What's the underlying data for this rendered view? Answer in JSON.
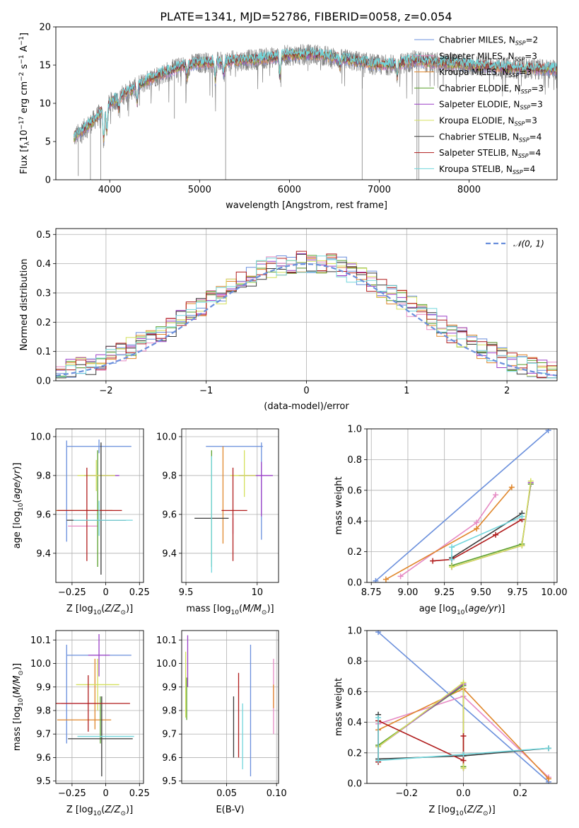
{
  "title": "PLATE=1341, MJD=52786, FIBERID=0058, z=0.054",
  "colors": {
    "Chabrier MILES": "#6a8fdc",
    "Salpeter MILES": "#e68ac4",
    "Kroupa MILES": "#e0862a",
    "Chabrier ELODIE": "#5aa02c",
    "Salpeter ELODIE": "#9b3fc7",
    "Kroupa ELODIE": "#d4e05c",
    "Chabrier STELIB": "#3a3a3a",
    "Salpeter STELIB": "#b01c1c",
    "Kroupa STELIB": "#72d6dc",
    "data": "#808080",
    "gaussian": "#6a8fdc"
  },
  "legend_models": [
    {
      "base": "Chabrier MILES",
      "sub": "SSP",
      "nval": "2"
    },
    {
      "base": "Salpeter MILES",
      "sub": "SSP",
      "nval": "3"
    },
    {
      "base": "Kroupa MILES",
      "sub": "SSP",
      "nval": "3"
    },
    {
      "base": "Chabrier ELODIE",
      "sub": "SSP",
      "nval": "3"
    },
    {
      "base": "Salpeter ELODIE",
      "sub": "SSP",
      "nval": "3"
    },
    {
      "base": "Kroupa ELODIE",
      "sub": "SSP",
      "nval": "3"
    },
    {
      "base": "Chabrier STELIB",
      "sub": "SSP",
      "nval": "4"
    },
    {
      "base": "Salpeter STELIB",
      "sub": "SSP",
      "nval": "4"
    },
    {
      "base": "Kroupa STELIB",
      "sub": "SSP",
      "nval": "4"
    }
  ],
  "gauss_legend": "𝒩(0, 1)",
  "chart_data": [
    {
      "id": "spectrum",
      "type": "line",
      "xlabel": "wavelength [Angstrom, rest frame]",
      "ylabel": "Flux [f_λ10^-17 erg cm^-2 s^-1 A^-1]",
      "xlim": [
        3400,
        8980
      ],
      "ylim": [
        0,
        20
      ],
      "xticks": [
        4000,
        5000,
        6000,
        7000,
        8000
      ],
      "yticks": [
        0,
        5,
        10,
        15,
        20
      ],
      "data_range": [
        3600,
        9000
      ],
      "continuum": {
        "x": [
          3600,
          3800,
          4000,
          4200,
          4500,
          4800,
          5000,
          5300,
          5600,
          6000,
          6300,
          6600,
          6800,
          7000,
          7200,
          7400,
          7600,
          8000,
          8500,
          9000
        ],
        "y": [
          5.5,
          7.5,
          10.0,
          11.5,
          13.5,
          14.8,
          15.3,
          15.5,
          15.7,
          16.3,
          16.4,
          15.8,
          15.4,
          15.0,
          15.1,
          15.6,
          15.3,
          15.0,
          14.6,
          14.4
        ]
      },
      "dips": [
        {
          "x": 3933,
          "depth": 4.0
        },
        {
          "x": 3968,
          "depth": 3.5
        },
        {
          "x": 4101,
          "depth": 1.5
        },
        {
          "x": 4305,
          "depth": 2.0
        },
        {
          "x": 4861,
          "depth": 1.5
        },
        {
          "x": 5175,
          "depth": 2.5
        },
        {
          "x": 5270,
          "depth": 1.5
        },
        {
          "x": 5895,
          "depth": 2.5
        },
        {
          "x": 6563,
          "depth": 1.0
        },
        {
          "x": 7200,
          "depth": 1.5
        }
      ],
      "spikes": [
        {
          "x": 3650,
          "y": 0.5
        },
        {
          "x": 3785,
          "y": 0.0
        },
        {
          "x": 3900,
          "y": 0.0
        },
        {
          "x": 4720,
          "y": 8.0
        },
        {
          "x": 5290,
          "y": 0.0
        },
        {
          "x": 6810,
          "y": 0.0
        },
        {
          "x": 7420,
          "y": 0.0
        },
        {
          "x": 7440,
          "y": 0.0
        }
      ]
    },
    {
      "id": "residuals",
      "type": "step",
      "xlabel": "(data-model)/error",
      "ylabel": "Normed distribution",
      "xlim": [
        -2.5,
        2.5
      ],
      "ylim": [
        0,
        0.52
      ],
      "xticks": [
        -2,
        -1,
        0,
        1,
        2
      ],
      "yticks": [
        0.0,
        0.1,
        0.2,
        0.3,
        0.4,
        0.5
      ],
      "bins": [
        -2.5,
        -2.4,
        -2.3,
        -2.2,
        -2.1,
        -2.0,
        -1.9,
        -1.8,
        -1.7,
        -1.6,
        -1.5,
        -1.4,
        -1.3,
        -1.2,
        -1.1,
        -1.0,
        -0.9,
        -0.8,
        -0.7,
        -0.6,
        -0.5,
        -0.4,
        -0.3,
        -0.2,
        -0.1,
        0.0,
        0.1,
        0.2,
        0.3,
        0.4,
        0.5,
        0.6,
        0.7,
        0.8,
        0.9,
        1.0,
        1.1,
        1.2,
        1.3,
        1.4,
        1.5,
        1.6,
        1.7,
        1.8,
        1.9,
        2.0,
        2.1,
        2.2,
        2.3,
        2.4,
        2.5
      ],
      "gaussian": "normal(0,1)"
    },
    {
      "id": "age_vs_Z",
      "type": "errorbar",
      "xlabel": "Z [log10(Z/Z_sun)]",
      "ylabel": "age  [log10(age/yr)]",
      "xlim": [
        -0.37,
        0.28
      ],
      "ylim": [
        9.25,
        10.04
      ],
      "xticks": [
        -0.25,
        0.0,
        0.25
      ],
      "yticks": [
        9.4,
        9.6,
        9.8,
        10.0
      ],
      "points": [
        {
          "model": "Chabrier MILES",
          "x": -0.05,
          "y": 9.95,
          "xerr": 0.24,
          "yerr": 0.035
        },
        {
          "model": "Chabrier MILES",
          "x": -0.29,
          "y": 9.72,
          "xerr": 0.0,
          "yerr": 0.26
        },
        {
          "model": "Salpeter MILES",
          "x": -0.17,
          "y": 9.54,
          "xerr": 0.11,
          "yerr": 0.0
        },
        {
          "model": "Kroupa MILES",
          "x": -0.16,
          "y": 9.62,
          "xerr": 0.21,
          "yerr": 0.0
        },
        {
          "model": "Chabrier ELODIE",
          "x": -0.06,
          "y": 9.63,
          "xerr": 0.0,
          "yerr": 0.3
        },
        {
          "model": "Salpeter ELODIE",
          "x": -0.03,
          "y": 9.8,
          "xerr": 0.13,
          "yerr": 0.0
        },
        {
          "model": "Kroupa ELODIE",
          "x": -0.07,
          "y": 9.8,
          "xerr": 0.14,
          "yerr": 0.08
        },
        {
          "model": "Chabrier STELIB",
          "x": -0.07,
          "y": 9.57,
          "xerr": 0.22,
          "yerr": 0.0
        },
        {
          "model": "Chabrier STELIB",
          "x": -0.035,
          "y": 9.63,
          "xerr": 0.0,
          "yerr": 0.34
        },
        {
          "model": "Salpeter STELIB",
          "x": -0.12,
          "y": 9.62,
          "xerr": 0.24,
          "yerr": 0.0
        },
        {
          "model": "Salpeter STELIB",
          "x": -0.14,
          "y": 9.6,
          "xerr": 0.0,
          "yerr": 0.24
        },
        {
          "model": "Kroupa STELIB",
          "x": -0.02,
          "y": 9.57,
          "xerr": 0.22,
          "yerr": 0.0
        },
        {
          "model": "Kroupa STELIB",
          "x": -0.05,
          "y": 9.58,
          "xerr": 0.0,
          "yerr": 0.09
        }
      ]
    },
    {
      "id": "age_vs_mass",
      "type": "errorbar",
      "xlabel": "mass [log10(M/M_sun)]",
      "ylabel": "",
      "xlim": [
        9.47,
        10.15
      ],
      "ylim": [
        9.25,
        10.04
      ],
      "xticks": [
        9.5,
        10.0
      ],
      "yticks": [
        9.4,
        9.6,
        9.8,
        10.0
      ],
      "points": [
        {
          "model": "Chabrier MILES",
          "x": 9.84,
          "y": 9.95,
          "xerr": 0.2,
          "yerr": 0.0
        },
        {
          "model": "Chabrier MILES",
          "x": 10.03,
          "y": 9.72,
          "xerr": 0.0,
          "yerr": 0.25
        },
        {
          "model": "Salpeter MILES",
          "x": 9.83,
          "y": 9.54,
          "xerr": 0.0,
          "yerr": 0.04
        },
        {
          "model": "Kroupa MILES",
          "x": 9.76,
          "y": 9.7,
          "xerr": 0.0,
          "yerr": 0.25
        },
        {
          "model": "Chabrier ELODIE",
          "x": 9.68,
          "y": 9.63,
          "xerr": 0.0,
          "yerr": 0.3
        },
        {
          "model": "Salpeter ELODIE",
          "x": 10.03,
          "y": 9.73,
          "xerr": 0.0,
          "yerr": 0.14
        },
        {
          "model": "Salpeter ELODIE",
          "x": 9.99,
          "y": 9.8,
          "xerr": 0.12,
          "yerr": 0.0
        },
        {
          "model": "Kroupa ELODIE",
          "x": 9.91,
          "y": 9.81,
          "xerr": 0.0,
          "yerr": 0.12
        },
        {
          "model": "Kroupa ELODIE",
          "x": 9.9,
          "y": 9.8,
          "xerr": 0.09,
          "yerr": 0.0
        },
        {
          "model": "Chabrier STELIB",
          "x": 9.68,
          "y": 9.58,
          "xerr": 0.12,
          "yerr": 0.0
        },
        {
          "model": "Salpeter STELIB",
          "x": 9.84,
          "y": 9.62,
          "xerr": 0.09,
          "yerr": 0.0
        },
        {
          "model": "Salpeter STELIB",
          "x": 9.83,
          "y": 9.6,
          "xerr": 0.0,
          "yerr": 0.24
        },
        {
          "model": "Kroupa STELIB",
          "x": 9.68,
          "y": 9.6,
          "xerr": 0.0,
          "yerr": 0.3
        }
      ]
    },
    {
      "id": "weight_vs_age",
      "type": "line",
      "xlabel": "age  [log10(age/yr)]",
      "ylabel": "mass weight",
      "xlim": [
        8.72,
        10.02
      ],
      "ylim": [
        0,
        1.0
      ],
      "xticks": [
        8.75,
        9.0,
        9.25,
        9.5,
        9.75,
        10.0
      ],
      "xtick_labels": [
        "8.75",
        "9.00",
        "9.25",
        "9.50",
        "9.75",
        "10.00"
      ],
      "yticks": [
        0.0,
        0.2,
        0.4,
        0.6,
        0.8,
        1.0
      ],
      "series": [
        {
          "model": "Chabrier MILES",
          "x": [
            8.78,
            9.96
          ],
          "y": [
            0.01,
            0.99
          ]
        },
        {
          "model": "Salpeter MILES",
          "x": [
            8.95,
            9.47,
            9.6
          ],
          "y": [
            0.04,
            0.39,
            0.57
          ]
        },
        {
          "model": "Kroupa MILES",
          "x": [
            8.85,
            9.47,
            9.71
          ],
          "y": [
            0.02,
            0.35,
            0.62
          ]
        },
        {
          "model": "Chabrier ELODIE",
          "x": [
            9.3,
            9.78,
            9.84
          ],
          "y": [
            0.11,
            0.25,
            0.64
          ]
        },
        {
          "model": "Salpeter ELODIE",
          "x": [
            9.3,
            9.78,
            9.84
          ],
          "y": [
            0.1,
            0.24,
            0.65
          ]
        },
        {
          "model": "Kroupa ELODIE",
          "x": [
            9.3,
            9.78,
            9.84
          ],
          "y": [
            0.1,
            0.24,
            0.66
          ]
        },
        {
          "model": "Chabrier STELIB",
          "x": [
            9.3,
            9.78
          ],
          "y": [
            0.16,
            0.45
          ]
        },
        {
          "model": "Salpeter STELIB",
          "x": [
            9.17,
            9.3,
            9.6,
            9.78
          ],
          "y": [
            0.14,
            0.15,
            0.31,
            0.41
          ]
        },
        {
          "model": "Kroupa STELIB",
          "x": [
            9.3,
            9.3,
            9.78
          ],
          "y": [
            0.15,
            0.23,
            0.43
          ]
        }
      ]
    },
    {
      "id": "mass_vs_Z",
      "type": "errorbar",
      "xlabel": "Z [log10(Z/Z_sun)]",
      "ylabel": "mass [log10(M/M_sun)]",
      "xlim": [
        -0.37,
        0.28
      ],
      "ylim": [
        9.49,
        10.14
      ],
      "xticks": [
        -0.25,
        0.0,
        0.25
      ],
      "yticks": [
        9.5,
        9.6,
        9.7,
        9.8,
        9.9,
        10.0,
        10.1
      ],
      "points": [
        {
          "model": "Chabrier MILES",
          "x": -0.05,
          "y": 10.035,
          "xerr": 0.24,
          "yerr": 0.0
        },
        {
          "model": "Chabrier MILES",
          "x": -0.29,
          "y": 9.87,
          "xerr": 0.0,
          "yerr": 0.21
        },
        {
          "model": "Salpeter MILES",
          "x": -0.2,
          "y": 9.83,
          "xerr": 0.13,
          "yerr": 0.0
        },
        {
          "model": "Kroupa MILES",
          "x": -0.16,
          "y": 9.76,
          "xerr": 0.2,
          "yerr": 0.0
        },
        {
          "model": "Kroupa MILES",
          "x": -0.08,
          "y": 9.87,
          "xerr": 0.0,
          "yerr": 0.15
        },
        {
          "model": "Chabrier ELODIE",
          "x": -0.04,
          "y": 9.76,
          "xerr": 0.0,
          "yerr": 0.1
        },
        {
          "model": "Salpeter ELODIE",
          "x": -0.05,
          "y": 10.035,
          "xerr": 0.08,
          "yerr": 0.09
        },
        {
          "model": "Kroupa ELODIE",
          "x": -0.06,
          "y": 9.91,
          "xerr": 0.16,
          "yerr": 0.11
        },
        {
          "model": "Chabrier STELIB",
          "x": -0.04,
          "y": 9.68,
          "xerr": 0.24,
          "yerr": 0.0
        },
        {
          "model": "Chabrier STELIB",
          "x": -0.03,
          "y": 9.69,
          "xerr": 0.0,
          "yerr": 0.17
        },
        {
          "model": "Salpeter STELIB",
          "x": -0.11,
          "y": 9.83,
          "xerr": 0.29,
          "yerr": 0.0
        },
        {
          "model": "Salpeter STELIB",
          "x": -0.13,
          "y": 9.83,
          "xerr": 0.0,
          "yerr": 0.12
        },
        {
          "model": "Kroupa STELIB",
          "x": 0.0,
          "y": 9.69,
          "xerr": 0.21,
          "yerr": 0.0
        }
      ]
    },
    {
      "id": "mass_vs_ebv",
      "type": "errorbar",
      "xlabel": "E(B-V)",
      "ylabel": "",
      "xlim": [
        0.005,
        0.102
      ],
      "ylim": [
        9.49,
        10.14
      ],
      "xticks": [
        0.05,
        0.1
      ],
      "xtick_labels": [
        "0.05",
        "0.10"
      ],
      "yticks": [
        9.5,
        9.6,
        9.7,
        9.8,
        9.9,
        10.0,
        10.1
      ],
      "points": [
        {
          "model": "Chabrier MILES",
          "x": 0.074,
          "y": 9.8,
          "xerr": 0.0,
          "yerr": 0.28
        },
        {
          "model": "Salpeter MILES",
          "x": 0.097,
          "y": 9.86,
          "xerr": 0.0,
          "yerr": 0.16
        },
        {
          "model": "Kroupa MILES",
          "x": 0.097,
          "y": 9.86,
          "xerr": 0.0,
          "yerr": 0.05
        },
        {
          "model": "Chabrier ELODIE",
          "x": 0.01,
          "y": 9.85,
          "xerr": 0.0,
          "yerr": 0.09
        },
        {
          "model": "Salpeter ELODIE",
          "x": 0.011,
          "y": 10.01,
          "xerr": 0.0,
          "yerr": 0.11
        },
        {
          "model": "Kroupa ELODIE",
          "x": 0.009,
          "y": 9.91,
          "xerr": 0.0,
          "yerr": 0.14
        },
        {
          "model": "Chabrier STELIB",
          "x": 0.057,
          "y": 9.73,
          "xerr": 0.0,
          "yerr": 0.13
        },
        {
          "model": "Salpeter STELIB",
          "x": 0.062,
          "y": 9.78,
          "xerr": 0.0,
          "yerr": 0.18
        },
        {
          "model": "Kroupa STELIB",
          "x": 0.066,
          "y": 9.69,
          "xerr": 0.0,
          "yerr": 0.14
        }
      ]
    },
    {
      "id": "weight_vs_Z",
      "type": "line",
      "xlabel": "Z [log10(Z/Z_sun)]",
      "ylabel": "mass weight",
      "xlim": [
        -0.34,
        0.33
      ],
      "ylim": [
        0,
        1.0
      ],
      "xticks": [
        -0.2,
        0.0,
        0.2
      ],
      "xtick_labels": [
        "−0.2",
        "0.0",
        "0.2"
      ],
      "yticks": [
        0.0,
        0.2,
        0.4,
        0.6,
        0.8,
        1.0
      ],
      "series": [
        {
          "model": "Chabrier MILES",
          "x": [
            -0.3,
            0.3
          ],
          "y": [
            0.99,
            0.01
          ]
        },
        {
          "model": "Salpeter MILES",
          "x": [
            -0.3,
            0.0,
            0.3
          ],
          "y": [
            0.39,
            0.57,
            0.04
          ]
        },
        {
          "model": "Kroupa MILES",
          "x": [
            -0.3,
            0.0,
            0.3
          ],
          "y": [
            0.35,
            0.62,
            0.03
          ]
        },
        {
          "model": "Chabrier ELODIE",
          "x": [
            -0.3,
            0.0,
            0.0
          ],
          "y": [
            0.25,
            0.64,
            0.11
          ]
        },
        {
          "model": "Salpeter ELODIE",
          "x": [
            -0.3,
            0.0,
            0.0
          ],
          "y": [
            0.24,
            0.65,
            0.1
          ]
        },
        {
          "model": "Kroupa ELODIE",
          "x": [
            -0.3,
            0.0,
            0.0
          ],
          "y": [
            0.24,
            0.66,
            0.1
          ]
        },
        {
          "model": "Chabrier STELIB",
          "x": [
            -0.3,
            -0.3,
            0.0,
            0.3
          ],
          "y": [
            0.45,
            0.16,
            0.18,
            0.23
          ]
        },
        {
          "model": "Salpeter STELIB",
          "x": [
            -0.3,
            -0.3,
            0.0,
            0.0
          ],
          "y": [
            0.14,
            0.41,
            0.15,
            0.31
          ]
        },
        {
          "model": "Kroupa STELIB",
          "x": [
            -0.3,
            -0.3,
            0.0,
            0.3
          ],
          "y": [
            0.43,
            0.15,
            0.19,
            0.23
          ]
        }
      ]
    }
  ]
}
